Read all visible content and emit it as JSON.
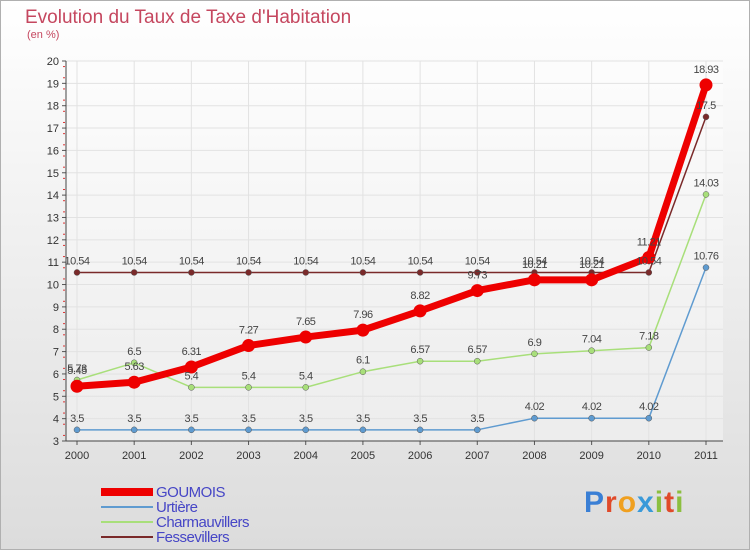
{
  "title": "Evolution du Taux de Taxe d'Habitation",
  "unit": "(en %)",
  "brand": {
    "text": "Proxiti",
    "colors": [
      "#3a7fd5",
      "#e04a2a",
      "#f0a020",
      "#3a9ad9",
      "#8cbf3f",
      "#e04a2a",
      "#8cbf3f"
    ]
  },
  "chart_data": {
    "type": "line",
    "title": "Evolution du Taux de Taxe d'Habitation",
    "ylabel": "(en %)",
    "xlabel": "",
    "ylim": [
      3,
      20
    ],
    "yticks": [
      "3",
      "4",
      "5",
      "6",
      "7",
      "8",
      "9",
      "10",
      "11",
      "12",
      "13",
      "14",
      "15",
      "16",
      "17",
      "18",
      "19",
      "20"
    ],
    "categories": [
      "2000",
      "2001",
      "2002",
      "2003",
      "2004",
      "2005",
      "2006",
      "2007",
      "2008",
      "2009",
      "2010",
      "2011"
    ],
    "series": [
      {
        "name": "GOUMOIS",
        "color": "#ee0000",
        "values": [
          5.45,
          5.63,
          6.31,
          7.27,
          7.65,
          7.96,
          8.82,
          9.73,
          10.21,
          10.21,
          11.21,
          18.93
        ],
        "labels": [
          "5.45",
          "5.63",
          "6.31",
          "7.27",
          "7.65",
          "7.96",
          "8.82",
          "9.73",
          "10.21",
          "10.21",
          "11.21",
          "18.93"
        ]
      },
      {
        "name": "Urtière",
        "color": "#5f9bd0",
        "values": [
          3.5,
          3.5,
          3.5,
          3.5,
          3.5,
          3.5,
          3.5,
          3.5,
          4.02,
          4.02,
          4.02,
          10.76
        ],
        "labels": [
          "3.5",
          "3.5",
          "3.5",
          "3.5",
          "3.5",
          "3.5",
          "3.5",
          "3.5",
          "4.02",
          "4.02",
          "4.02",
          "10.76"
        ]
      },
      {
        "name": "Charmauvillers",
        "color": "#a8df7a",
        "values": [
          5.73,
          6.5,
          5.4,
          5.4,
          5.4,
          6.1,
          6.57,
          6.57,
          6.9,
          7.04,
          7.18,
          14.03
        ],
        "labels": [
          "5.73",
          "6.5",
          "5.4",
          "5.4",
          "5.4",
          "6.1",
          "6.57",
          "6.57",
          "6.9",
          "7.04",
          "7.18",
          "14.03"
        ]
      },
      {
        "name": "Fessevillers",
        "color": "#7a2a2a",
        "values": [
          10.54,
          10.54,
          10.54,
          10.54,
          10.54,
          10.54,
          10.54,
          10.54,
          10.54,
          10.54,
          10.54,
          17.5
        ],
        "labels": [
          "10.54",
          "10.54",
          "10.54",
          "10.54",
          "10.54",
          "10.54",
          "10.54",
          "10.54",
          "10.54",
          "10.54",
          "10.54",
          "17.5"
        ]
      }
    ],
    "legend": [
      "GOUMOIS",
      "Urtière",
      "Charmauvillers",
      "Fessevillers"
    ],
    "grid": true,
    "legend_position": "bottom-left"
  }
}
